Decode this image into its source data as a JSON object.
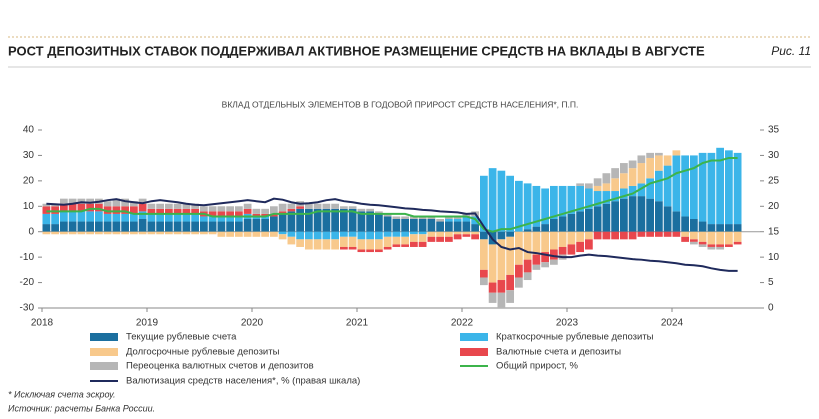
{
  "header": {
    "title": "РОСТ ДЕПОЗИТНЫХ СТАВОК ПОДДЕРЖИВАЛ АКТИВНОЕ РАЗМЕЩЕНИЕ СРЕДСТВ НА ВКЛАДЫ В АВГУСТЕ",
    "figure": "Рис. 11"
  },
  "chart_data": {
    "type": "bar",
    "stacked": true,
    "subtitle": "ВКЛАД ОТДЕЛЬНЫХ ЭЛЕМЕНТОВ В ГОДОВОЙ ПРИРОСТ СРЕДСТВ НАСЕЛЕНИЯ*, П.П.",
    "categories": [
      "2018",
      null,
      null,
      null,
      null,
      null,
      null,
      null,
      null,
      null,
      null,
      null,
      "2019",
      null,
      null,
      null,
      null,
      null,
      null,
      null,
      null,
      null,
      null,
      null,
      "2020",
      null,
      null,
      null,
      null,
      null,
      null,
      null,
      null,
      null,
      null,
      null,
      "2021",
      null,
      null,
      null,
      null,
      null,
      null,
      null,
      null,
      null,
      null,
      null,
      "2022",
      null,
      null,
      null,
      null,
      null,
      null,
      null,
      null,
      null,
      null,
      null,
      "2023",
      null,
      null,
      null,
      null,
      null,
      null,
      null,
      null,
      null,
      null,
      null,
      "2024",
      null,
      null,
      null,
      null,
      null,
      null,
      null
    ],
    "ylim": [
      -30,
      40
    ],
    "yticks": [
      -30,
      -20,
      -10,
      0,
      10,
      20,
      30,
      40
    ],
    "y2lim": [
      0,
      35
    ],
    "y2ticks": [
      0,
      5,
      10,
      15,
      20,
      25,
      30,
      35
    ],
    "series": [
      {
        "name": "Текущие рублевые счета",
        "type": "bar",
        "color": "#1b6f9f",
        "values": [
          3,
          3,
          4,
          4,
          4,
          4,
          4,
          4,
          4,
          4,
          4,
          5,
          4,
          4,
          4,
          4,
          4,
          4,
          4,
          4,
          4,
          4,
          4,
          5,
          5,
          5,
          6,
          7,
          8,
          9,
          9,
          9,
          9,
          9,
          9,
          9,
          8,
          8,
          7,
          6,
          5,
          5,
          5,
          5,
          5,
          4,
          4,
          4,
          4,
          3,
          -3,
          -5,
          -3,
          -2,
          0,
          1,
          2,
          3,
          5,
          6,
          7,
          8,
          9,
          10,
          11,
          12,
          13,
          14,
          14,
          13,
          12,
          10,
          8,
          6,
          5,
          4,
          3,
          3,
          3,
          3
        ]
      },
      {
        "name": "Краткосрочные рублевые депозиты",
        "type": "bar",
        "color": "#3bb5e9",
        "values": [
          4,
          4,
          4,
          4,
          4,
          4,
          4,
          3,
          3,
          3,
          3,
          3,
          3,
          3,
          3,
          3,
          3,
          3,
          2,
          2,
          2,
          2,
          2,
          2,
          1,
          1,
          0,
          -1,
          -2,
          -3,
          -3,
          -3,
          -3,
          -3,
          -2,
          -2,
          -3,
          -3,
          -3,
          -2,
          -2,
          -2,
          -1,
          -1,
          0,
          0,
          1,
          1,
          2,
          3,
          22,
          25,
          24,
          22,
          20,
          18,
          16,
          14,
          13,
          12,
          11,
          10,
          8,
          6,
          5,
          4,
          4,
          4,
          5,
          8,
          12,
          16,
          22,
          24,
          25,
          27,
          28,
          30,
          29,
          28
        ]
      },
      {
        "name": "Долгосрочные рублевые депозиты",
        "type": "bar",
        "color": "#f8c98c",
        "values": [
          -1,
          -1,
          -1,
          -1,
          -1,
          -1,
          -1,
          -1,
          -1,
          -1,
          -1,
          -1,
          -1,
          -1,
          -1,
          -1,
          -1,
          -1,
          -1,
          -1,
          -2,
          -2,
          -2,
          -2,
          -2,
          -2,
          -2,
          -2,
          -3,
          -3,
          -4,
          -4,
          -4,
          -4,
          -4,
          -4,
          -4,
          -4,
          -4,
          -4,
          -3,
          -3,
          -3,
          -3,
          -2,
          -2,
          -2,
          -1,
          -1,
          -1,
          -12,
          -15,
          -16,
          -15,
          -13,
          -11,
          -9,
          -8,
          -7,
          -6,
          -5,
          -4,
          -3,
          2,
          3,
          5,
          6,
          7,
          8,
          8,
          6,
          4,
          2,
          -2,
          -3,
          -4,
          -5,
          -5,
          -5,
          -4
        ]
      },
      {
        "name": "Валютные счета и депозиты",
        "type": "bar",
        "color": "#e8474d",
        "values": [
          3,
          3,
          3,
          3,
          3,
          3,
          3,
          3,
          3,
          3,
          3,
          3,
          2,
          2,
          2,
          2,
          2,
          2,
          2,
          2,
          2,
          2,
          2,
          2,
          1,
          1,
          1,
          1,
          1,
          1,
          0,
          0,
          0,
          0,
          -1,
          -1,
          -1,
          -1,
          -1,
          -1,
          -1,
          -1,
          -2,
          -2,
          -2,
          -2,
          -2,
          -2,
          -1,
          -2,
          -3,
          -4,
          -5,
          -6,
          -5,
          -5,
          -4,
          -4,
          -4,
          -3,
          -4,
          -4,
          -4,
          -3,
          -3,
          -3,
          -3,
          -3,
          -2,
          -2,
          -2,
          -2,
          -2,
          -2,
          -1,
          -1,
          -1,
          -1,
          -1,
          -1
        ]
      },
      {
        "name": "Переоценка валютных счетов и депозитов",
        "type": "bar",
        "color": "#b6b6b6",
        "values": [
          1,
          1,
          2,
          2,
          2,
          2,
          2,
          2,
          3,
          3,
          2,
          2,
          2,
          2,
          2,
          2,
          2,
          2,
          2,
          2,
          2,
          2,
          2,
          2,
          2,
          2,
          3,
          3,
          2,
          2,
          2,
          2,
          2,
          2,
          1,
          1,
          1,
          1,
          1,
          1,
          1,
          1,
          1,
          1,
          1,
          1,
          1,
          1,
          1,
          2,
          -3,
          -4,
          -6,
          -5,
          -4,
          -3,
          -2,
          -2,
          -2,
          -2,
          0,
          1,
          2,
          3,
          4,
          4,
          4,
          3,
          3,
          2,
          1,
          0,
          0,
          0,
          -1,
          -1,
          -1,
          -1,
          0,
          0
        ]
      },
      {
        "name": "Общий прирост, %",
        "type": "line",
        "color": "#3cb44b",
        "values": [
          8,
          8,
          8,
          8,
          8,
          9,
          9,
          8,
          8,
          8,
          7,
          7,
          7,
          7,
          7,
          7,
          7,
          7,
          7,
          6,
          6,
          6,
          6,
          6,
          6,
          6,
          7,
          7,
          7,
          7,
          7,
          8,
          8,
          8,
          8,
          8,
          7,
          7,
          7,
          7,
          7,
          7,
          6,
          6,
          6,
          6,
          6,
          6,
          6,
          5,
          1,
          0,
          1,
          1,
          2,
          3,
          4,
          5,
          6,
          7,
          8,
          9,
          10,
          11,
          12,
          13,
          14,
          15,
          17,
          19,
          20,
          21,
          23,
          24,
          25,
          27,
          28,
          28,
          29,
          29
        ]
      },
      {
        "name": "Валютизация средств населения*, % (правая шкала)",
        "type": "line",
        "axis": "y2",
        "color": "#1f2a5c",
        "values": [
          20.5,
          20.4,
          20.3,
          20.5,
          20.8,
          20.7,
          20.9,
          21.2,
          21.4,
          21,
          20.8,
          20.6,
          21,
          21.2,
          21,
          20.8,
          20.5,
          20.3,
          20.2,
          20.4,
          20.6,
          20.8,
          21,
          21.2,
          21,
          20.8,
          21.5,
          21.3,
          20.8,
          20.5,
          20.6,
          20.8,
          21.2,
          21.4,
          21,
          20.8,
          20.5,
          20.3,
          20.2,
          20,
          19.8,
          19.6,
          19.5,
          19.3,
          19.2,
          19,
          18.9,
          18.8,
          18.5,
          18.6,
          16,
          13.5,
          12,
          11.5,
          11.8,
          11,
          10.8,
          10.5,
          10.2,
          10,
          10,
          10.3,
          10.5,
          10.3,
          10.2,
          10,
          9.8,
          9.6,
          9.5,
          9.3,
          9.2,
          9,
          8.8,
          8.5,
          8.4,
          8.2,
          7.8,
          7.5,
          7.3,
          7.3
        ]
      }
    ]
  },
  "footnotes": [
    "* Исключая счета эскроу.",
    "Источник: расчеты Банка России."
  ]
}
